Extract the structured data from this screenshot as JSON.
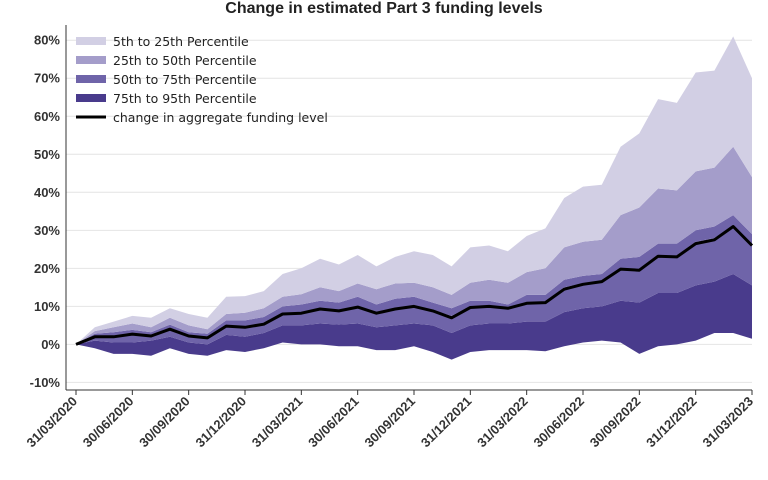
{
  "chart_data": {
    "type": "area",
    "title": "Change in estimated Part 3 funding levels",
    "xlabel": "",
    "ylabel": "",
    "ylim": [
      -0.12,
      0.84
    ],
    "y_ticks": [
      -0.1,
      0,
      0.1,
      0.2,
      0.3,
      0.4,
      0.5,
      0.6,
      0.7,
      0.8
    ],
    "y_tick_labels": [
      "-10%",
      "0%",
      "10%",
      "20%",
      "30%",
      "40%",
      "50%",
      "60%",
      "70%",
      "80%"
    ],
    "x_tick_labels": [
      "31/03/2020",
      "30/06/2020",
      "30/09/2020",
      "31/12/2020",
      "31/03/2021",
      "30/06/2021",
      "30/09/2021",
      "31/12/2021",
      "31/03/2022",
      "30/06/2022",
      "30/09/2022",
      "31/12/2022",
      "31/03/2023"
    ],
    "x_tick_index": [
      0,
      3,
      6,
      9,
      12,
      15,
      18,
      21,
      24,
      27,
      30,
      33,
      36
    ],
    "x": [
      "31/03/2020",
      "30/04/2020",
      "31/05/2020",
      "30/06/2020",
      "31/07/2020",
      "31/08/2020",
      "30/09/2020",
      "31/10/2020",
      "30/11/2020",
      "31/12/2020",
      "31/01/2021",
      "28/02/2021",
      "31/03/2021",
      "30/04/2021",
      "31/05/2021",
      "30/06/2021",
      "31/07/2021",
      "31/08/2021",
      "30/09/2021",
      "31/10/2021",
      "30/11/2021",
      "31/12/2021",
      "31/01/2022",
      "28/02/2022",
      "31/03/2022",
      "30/04/2022",
      "31/05/2022",
      "30/06/2022",
      "31/07/2022",
      "31/08/2022",
      "30/09/2022",
      "31/10/2022",
      "30/11/2022",
      "31/12/2022",
      "31/01/2023",
      "28/02/2023",
      "31/03/2023"
    ],
    "percentiles": {
      "p5": [
        0,
        -0.01,
        -0.025,
        -0.025,
        -0.03,
        -0.01,
        -0.025,
        -0.03,
        -0.015,
        -0.02,
        -0.01,
        0.005,
        0,
        0,
        -0.005,
        -0.005,
        -0.015,
        -0.015,
        -0.005,
        -0.02,
        -0.04,
        -0.02,
        -0.015,
        -0.015,
        -0.015,
        -0.018,
        -0.005,
        0.005,
        0.01,
        0.005,
        -0.025,
        -0.005,
        0,
        0.01,
        0.03,
        0.03,
        0.015
      ],
      "p25": [
        0,
        0.01,
        0.005,
        0.005,
        0.01,
        0.02,
        0.005,
        0,
        0.025,
        0.02,
        0.03,
        0.05,
        0.05,
        0.055,
        0.052,
        0.055,
        0.045,
        0.05,
        0.055,
        0.05,
        0.03,
        0.05,
        0.055,
        0.055,
        0.06,
        0.06,
        0.085,
        0.095,
        0.1,
        0.115,
        0.11,
        0.135,
        0.135,
        0.155,
        0.165,
        0.185,
        0.155
      ],
      "p50": [
        0,
        0.022,
        0.022,
        0.03,
        0.02,
        0.042,
        0.02,
        0.02,
        0.05,
        0.048,
        0.055,
        0.08,
        0.085,
        0.095,
        0.09,
        0.1,
        0.085,
        0.095,
        0.1,
        0.09,
        0.075,
        0.1,
        0.1,
        0.095,
        0.11,
        0.11,
        0.15,
        0.16,
        0.165,
        0.2,
        0.195,
        0.235,
        0.23,
        0.27,
        0.28,
        0.31,
        0.26
      ],
      "p75": [
        0,
        0.028,
        0.032,
        0.038,
        0.032,
        0.052,
        0.032,
        0.028,
        0.063,
        0.063,
        0.072,
        0.1,
        0.105,
        0.115,
        0.11,
        0.125,
        0.105,
        0.12,
        0.125,
        0.11,
        0.095,
        0.115,
        0.115,
        0.105,
        0.13,
        0.13,
        0.17,
        0.18,
        0.185,
        0.225,
        0.23,
        0.265,
        0.265,
        0.3,
        0.31,
        0.34,
        0.29
      ],
      "p95": [
        0,
        0.035,
        0.045,
        0.055,
        0.045,
        0.07,
        0.05,
        0.04,
        0.08,
        0.083,
        0.095,
        0.125,
        0.132,
        0.15,
        0.14,
        0.16,
        0.145,
        0.16,
        0.162,
        0.15,
        0.13,
        0.162,
        0.17,
        0.162,
        0.19,
        0.2,
        0.255,
        0.27,
        0.275,
        0.34,
        0.36,
        0.41,
        0.405,
        0.455,
        0.465,
        0.52,
        0.44
      ],
      "p99": [
        0,
        0.045,
        0.06,
        0.075,
        0.07,
        0.095,
        0.08,
        0.07,
        0.125,
        0.127,
        0.14,
        0.185,
        0.2,
        0.225,
        0.21,
        0.235,
        0.205,
        0.23,
        0.245,
        0.235,
        0.205,
        0.255,
        0.26,
        0.245,
        0.285,
        0.305,
        0.385,
        0.415,
        0.42,
        0.52,
        0.555,
        0.645,
        0.635,
        0.715,
        0.72,
        0.81,
        0.7
      ]
    },
    "series": [
      {
        "name": "5th to 25th Percentile",
        "lower": "p5",
        "upper": "p25",
        "color": "#d2cfe4"
      },
      {
        "name": "25th to 50th Percentile",
        "lower": "p25",
        "upper": "p50",
        "color": "#a49dca"
      },
      {
        "name": "50th to 75th Percentile",
        "lower": "p50",
        "upper": "p75",
        "color": "#6f64a9"
      },
      {
        "name": "75th to 95th Percentile",
        "lower": "p75",
        "upper": "p95",
        "color": "#493b8c"
      }
    ],
    "bands": [
      {
        "lower": "p5",
        "upper": "p25",
        "color": "#493b8c"
      },
      {
        "lower": "p25",
        "upper": "p50",
        "color": "#6f64a9"
      },
      {
        "lower": "p50",
        "upper": "p75",
        "color": "#6f64a9"
      },
      {
        "lower": "p75",
        "upper": "p95",
        "color": "#a49dca"
      },
      {
        "lower": "p95",
        "upper": "p99",
        "color": "#d2cfe4"
      }
    ],
    "aggregate_series": {
      "name": "change in aggregate funding level",
      "color": "#000000",
      "values": [
        0,
        0.02,
        0.02,
        0.027,
        0.022,
        0.04,
        0.022,
        0.017,
        0.048,
        0.045,
        0.053,
        0.08,
        0.082,
        0.093,
        0.088,
        0.098,
        0.082,
        0.093,
        0.1,
        0.088,
        0.07,
        0.097,
        0.1,
        0.095,
        0.108,
        0.11,
        0.145,
        0.158,
        0.165,
        0.198,
        0.195,
        0.232,
        0.23,
        0.265,
        0.275,
        0.31,
        0.26
      ]
    },
    "legend_position": "top-left",
    "grid": "horizontal"
  }
}
